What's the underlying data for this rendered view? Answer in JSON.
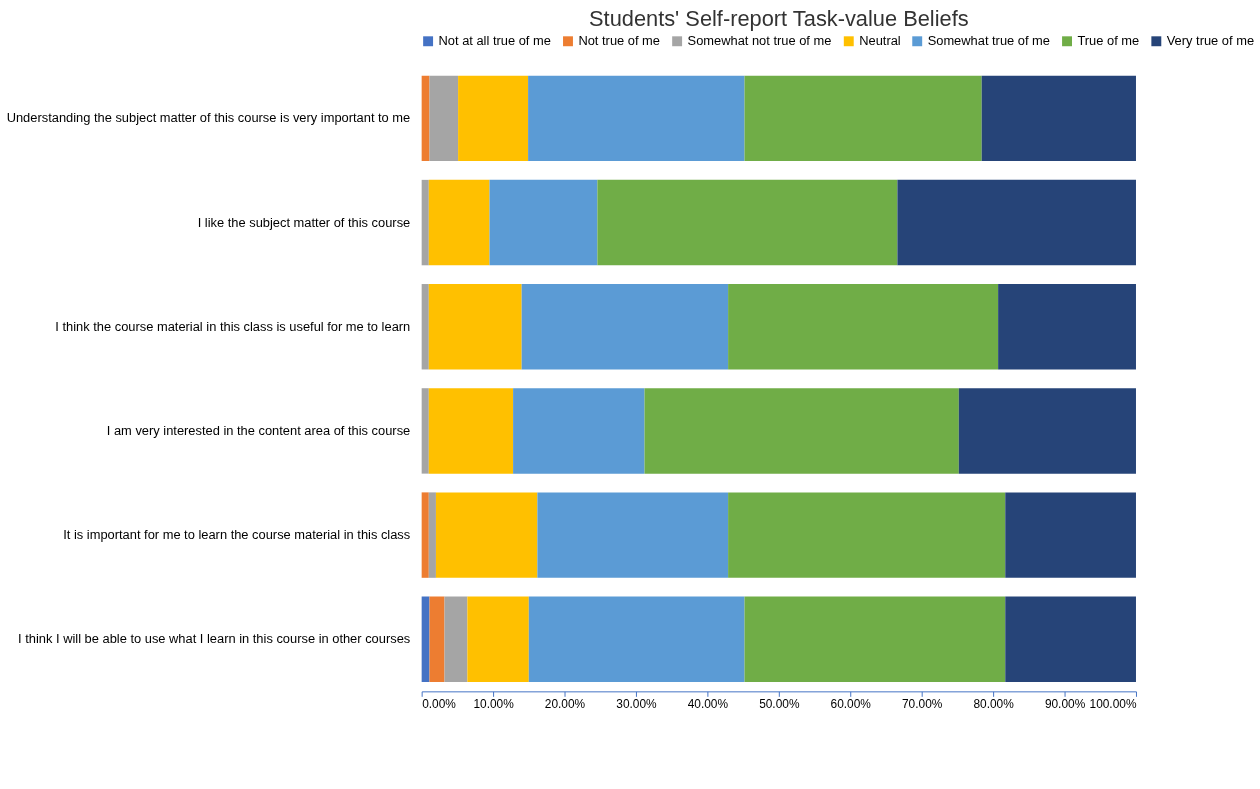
{
  "chart_data": {
    "type": "bar",
    "orientation": "horizontal",
    "stacked": true,
    "title": "Students' Self-report Task-value Beliefs",
    "legend": "top",
    "grid": false,
    "categories": [
      "Understanding the subject matter of this course is very important to me",
      "I like the subject matter of this course",
      "I think the course material in this class is useful for me to learn",
      "I am very interested in the content area of this course",
      "It is important for me to learn the course material in this class",
      "I think I will be able to use what I learn in this course in other courses"
    ],
    "series": [
      {
        "name": "Not at all true of me",
        "color": "#4472c4",
        "values": [
          0,
          0,
          0,
          0,
          0,
          1.1
        ]
      },
      {
        "name": "Not true of me",
        "color": "#ed7d31",
        "values": [
          1.1,
          0,
          0,
          0,
          1,
          2.1
        ]
      },
      {
        "name": "Somewhat not true of me",
        "color": "#a5a5a5",
        "values": [
          4,
          1,
          1,
          1,
          1,
          3.2
        ]
      },
      {
        "name": "Neutral",
        "color": "#ffc000",
        "values": [
          9.8,
          8.5,
          13,
          11.8,
          14.2,
          8.6
        ]
      },
      {
        "name": "Somewhat true of me",
        "color": "#5b9bd5",
        "values": [
          30.3,
          15.1,
          28.9,
          18.4,
          26.7,
          30.2
        ]
      },
      {
        "name": "True of me",
        "color": "#70ad47",
        "values": [
          33.2,
          42,
          37.8,
          44,
          38.8,
          36.5
        ]
      },
      {
        "name": "Very true of me",
        "color": "#264478",
        "values": [
          21.6,
          33.4,
          19.3,
          24.8,
          18.3,
          18.3
        ]
      }
    ],
    "xlim": [
      0,
      100
    ],
    "xticks": [
      {
        "value": 0,
        "label": "0.00%"
      },
      {
        "value": 10,
        "label": "10.00%"
      },
      {
        "value": 20,
        "label": "20.00%"
      },
      {
        "value": 30,
        "label": "30.00%"
      },
      {
        "value": 40,
        "label": "40.00%"
      },
      {
        "value": 50,
        "label": "50.00%"
      },
      {
        "value": 60,
        "label": "60.00%"
      },
      {
        "value": 70,
        "label": "70.00%"
      },
      {
        "value": 80,
        "label": "80.00%"
      },
      {
        "value": 90,
        "label": "90.00%"
      },
      {
        "value": 100,
        "label": "100.00%"
      }
    ]
  }
}
